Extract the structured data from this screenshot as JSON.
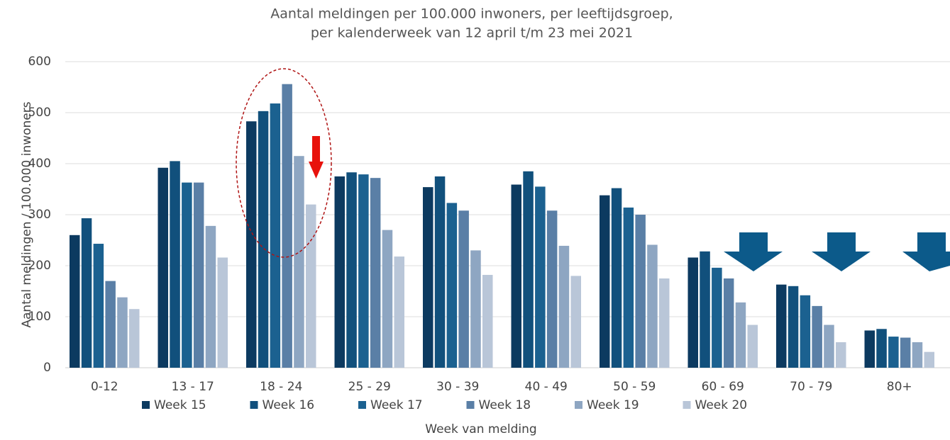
{
  "chart_data": {
    "type": "bar",
    "title": [
      "Aantal meldingen per 100.000 inwoners, per leeftijdsgroep,",
      "per kalenderweek van 12 april t/m 23 mei 2021"
    ],
    "y_label": "Aantal meldingen / 100.000 inwoners",
    "x_label": "Week van melding",
    "categories": [
      "0-12",
      "13 - 17",
      "18 - 24",
      "25 - 29",
      "30 - 39",
      "40 - 49",
      "50 - 59",
      "60 - 69",
      "70 - 79",
      "80+"
    ],
    "series": [
      {
        "name": "Week 15",
        "color": "#0c3a60",
        "values": [
          260,
          392,
          483,
          375,
          354,
          359,
          338,
          216,
          163,
          73
        ]
      },
      {
        "name": "Week 16",
        "color": "#11507c",
        "values": [
          293,
          405,
          503,
          383,
          375,
          385,
          352,
          228,
          160,
          76
        ]
      },
      {
        "name": "Week 17",
        "color": "#1b6190",
        "values": [
          243,
          363,
          518,
          379,
          323,
          355,
          314,
          196,
          142,
          61
        ]
      },
      {
        "name": "Week 18",
        "color": "#5a7fa6",
        "values": [
          170,
          363,
          556,
          372,
          308,
          308,
          300,
          175,
          121,
          59
        ]
      },
      {
        "name": "Week 19",
        "color": "#8ea6c2",
        "values": [
          138,
          278,
          415,
          270,
          230,
          239,
          241,
          128,
          84,
          50
        ]
      },
      {
        "name": "Week 20",
        "color": "#b9c6d8",
        "values": [
          115,
          216,
          320,
          218,
          182,
          180,
          175,
          84,
          50,
          31
        ]
      }
    ],
    "ylim": [
      0,
      600
    ],
    "yticks": [
      0,
      100,
      200,
      300,
      400,
      500,
      600
    ],
    "grid": true
  }
}
